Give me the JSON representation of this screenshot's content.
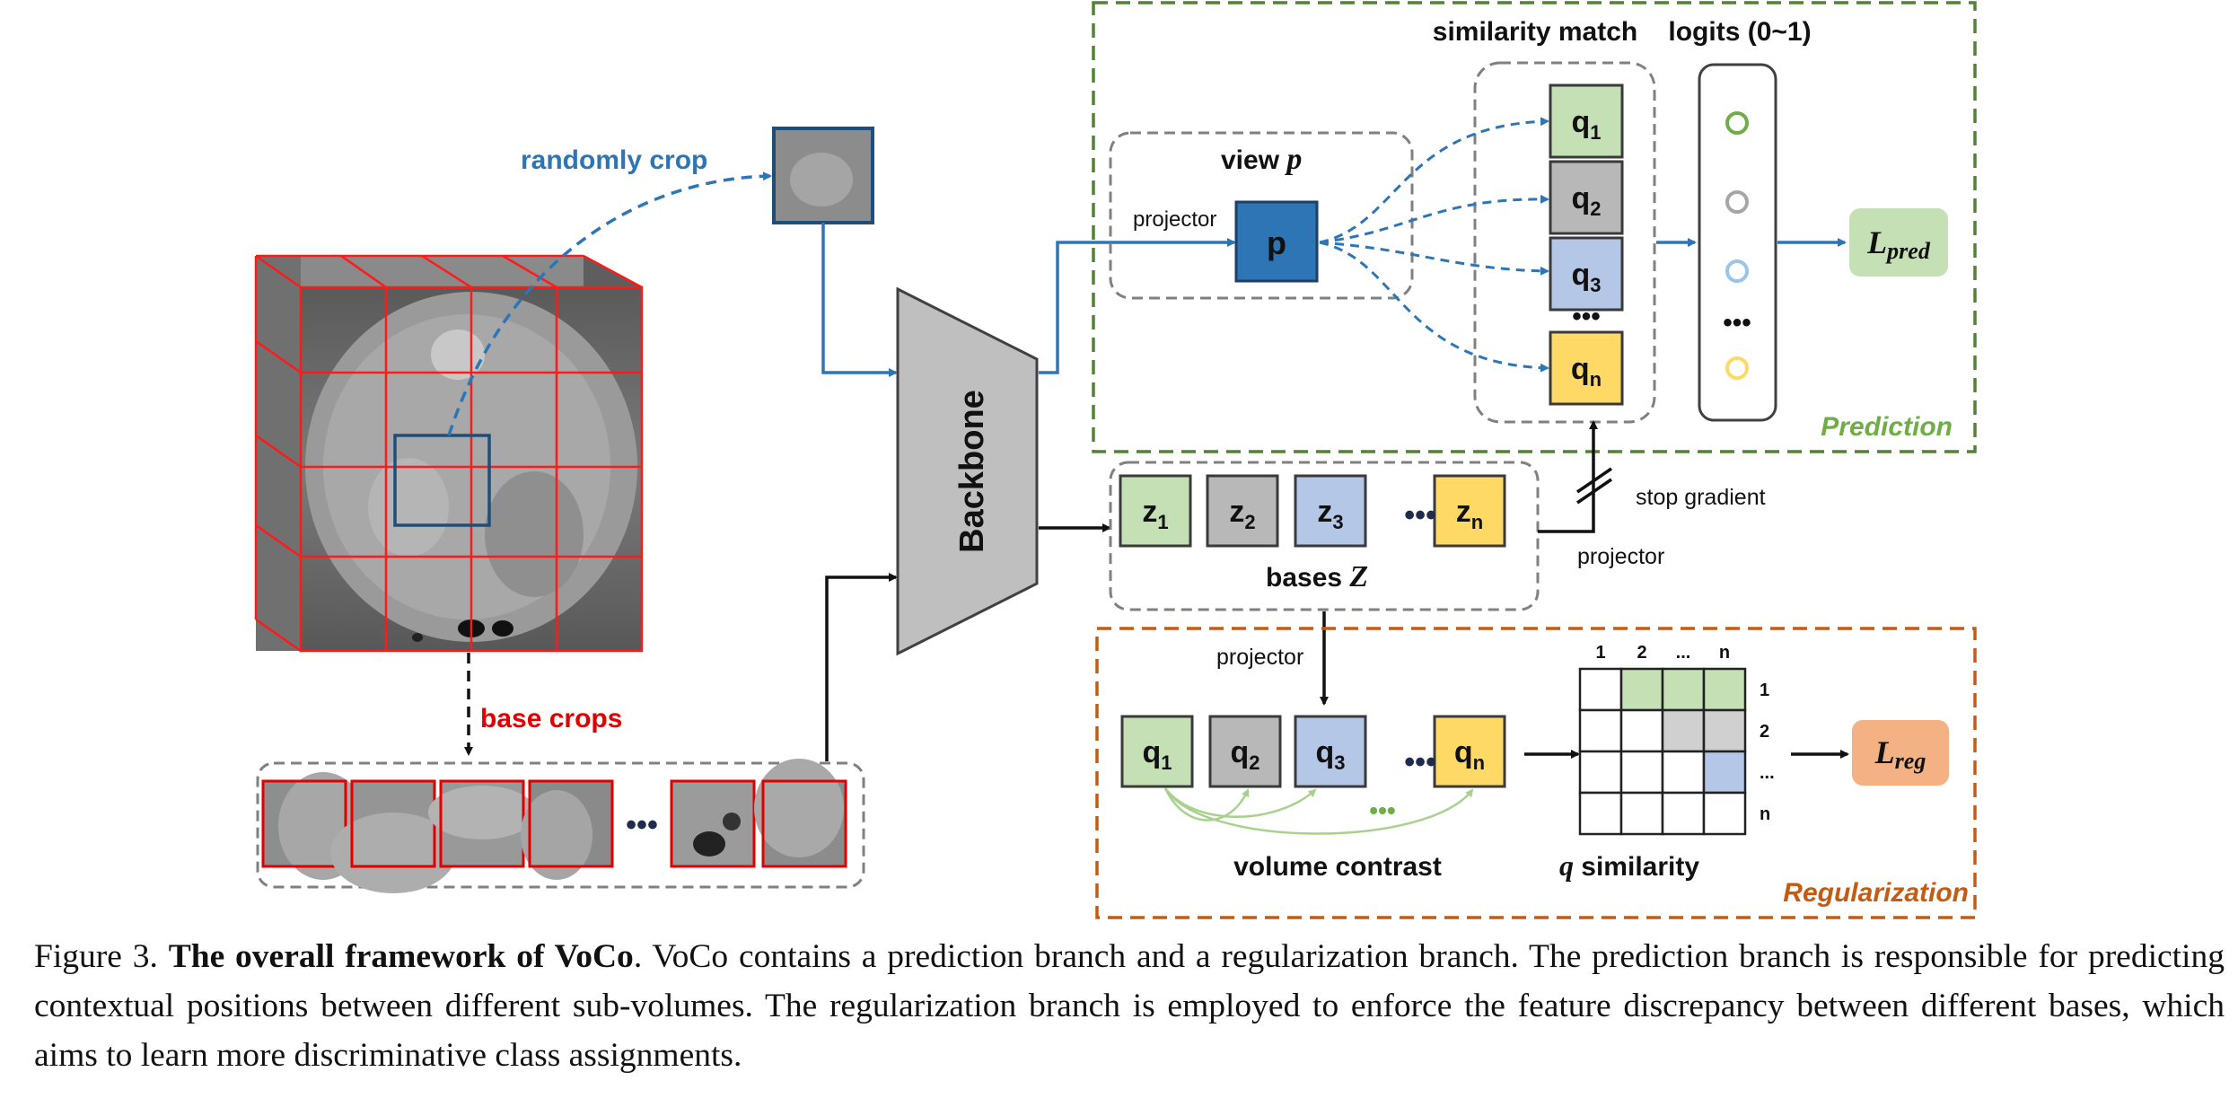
{
  "labels": {
    "randomly_crop": "randomly crop",
    "base_crops": "base crops",
    "backbone": "Backbone",
    "view_title": "view ",
    "view_var": "p",
    "projector": "projector",
    "p_box": "p",
    "similarity_match": "similarity match",
    "logits": "logits (0~1)",
    "prediction": "Prediction",
    "regularization": "Regularization",
    "stop_gradient": "stop gradient",
    "bases_title": "bases ",
    "bases_var": "Z",
    "volume_contrast": "volume contrast",
    "q_sim_var": "q",
    "q_sim_text": " similarity",
    "loss_pred_main": "L",
    "loss_pred_sub": "pred",
    "loss_reg_main": "L",
    "loss_reg_sub": "reg",
    "ellipsis": "•••"
  },
  "q_items": [
    {
      "main": "q",
      "sub": "1"
    },
    {
      "main": "q",
      "sub": "2"
    },
    {
      "main": "q",
      "sub": "3"
    },
    {
      "main": "q",
      "sub": "n"
    }
  ],
  "z_items": [
    {
      "main": "z",
      "sub": "1"
    },
    {
      "main": "z",
      "sub": "2"
    },
    {
      "main": "z",
      "sub": "3"
    },
    {
      "main": "z",
      "sub": "n"
    }
  ],
  "matrix": {
    "col_labels": [
      "1",
      "2",
      "...",
      "n"
    ],
    "row_labels": [
      "1",
      "2",
      "...",
      "n"
    ]
  },
  "colors": {
    "green_fill": "#c5e0b4",
    "gray_fill": "#b8b8b8",
    "blue_fill": "#b4c7e7",
    "yellow_fill": "#ffd966",
    "p_fill": "#2e75b6",
    "prediction_border": "#548235",
    "prediction_text": "#70ad47",
    "regularization_border": "#c55a11",
    "arrow_blue": "#2e75b6",
    "crop_red": "#e00000",
    "loss_pred_fill": "#c5e0b4",
    "loss_reg_fill": "#f4b183"
  },
  "caption": {
    "fig_label": "Figure 3. ",
    "bold_title": "The overall framework of VoCo",
    "text": ". VoCo contains a prediction branch and a regularization branch. The prediction branch is responsible for predicting contextual positions between different sub-volumes. The regularization branch is employed to enforce the feature discrepancy between different bases, which aims to learn more discriminative class assignments."
  }
}
